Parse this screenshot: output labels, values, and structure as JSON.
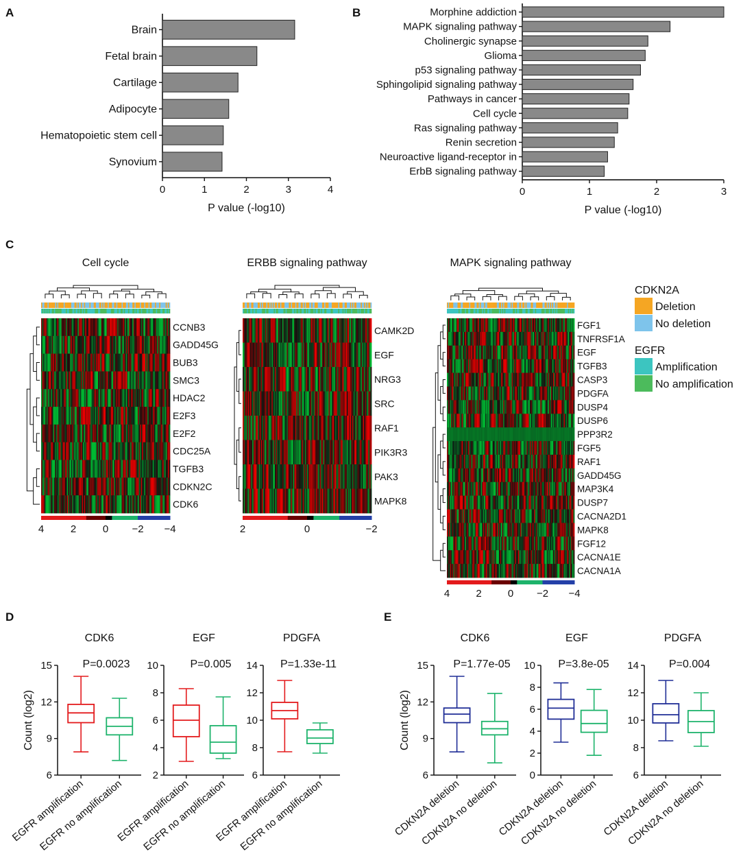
{
  "panel_letters": {
    "a": "A",
    "b": "B",
    "c": "C",
    "d": "D",
    "e": "E"
  },
  "colors": {
    "bar": "#898989",
    "red": "#e31a1c",
    "green": "#1db36b",
    "blue": "#1f2d96",
    "deletion": "#f5a623",
    "no_deletion": "#7ec4eb",
    "amplification": "#3cc5c0",
    "no_amplification": "#4cbb5c"
  },
  "chart_data": [
    {
      "id": "A",
      "type": "bar",
      "orientation": "horizontal",
      "categories": [
        "Brain",
        "Fetal brain",
        "Cartilage",
        "Adipocyte",
        "Hematopoietic stem cell",
        "Synovium"
      ],
      "values": [
        3.15,
        2.25,
        1.8,
        1.58,
        1.45,
        1.42
      ],
      "xlabel": "P value (-log10)",
      "xlim": [
        0,
        4
      ],
      "xticks": [
        "0",
        "1",
        "2",
        "3",
        "4"
      ]
    },
    {
      "id": "B",
      "type": "bar",
      "orientation": "horizontal",
      "categories": [
        "Morphine addiction",
        "MAPK signaling pathway",
        "Cholinergic synapse",
        "Glioma",
        "p53 signaling pathway",
        "Sphingolipid signaling pathway",
        "Pathways in cancer",
        "Cell cycle",
        "Ras signaling pathway",
        "Renin secretion",
        "Neuroactive ligand-receptor in",
        "ErbB signaling pathway"
      ],
      "values": [
        3.0,
        2.2,
        1.87,
        1.83,
        1.76,
        1.65,
        1.59,
        1.57,
        1.42,
        1.37,
        1.27,
        1.22
      ],
      "xlabel": "P value (-log10)",
      "xlim": [
        0,
        3
      ],
      "xticks": [
        "0",
        "1",
        "2",
        "3"
      ]
    },
    {
      "id": "C1",
      "type": "heatmap",
      "title": "Cell cycle",
      "rows": [
        "CCNB3",
        "GADD45G",
        "BUB3",
        "SMC3",
        "HDAC2",
        "E2F3",
        "E2F2",
        "CDC25A",
        "TGFB3",
        "CDKN2C",
        "CDK6"
      ],
      "scale_labels": [
        "4",
        "2",
        "0",
        "−2",
        "−4"
      ]
    },
    {
      "id": "C2",
      "type": "heatmap",
      "title": "ERBB signaling pathway",
      "rows": [
        "CAMK2D",
        "EGF",
        "NRG3",
        "SRC",
        "RAF1",
        "PIK3R3",
        "PAK3",
        "MAPK8"
      ],
      "scale_labels": [
        "2",
        "0",
        "−2"
      ]
    },
    {
      "id": "C3",
      "type": "heatmap",
      "title": "MAPK signaling pathway",
      "rows": [
        "FGF1",
        "TNFRSF1A",
        "EGF",
        "TGFB3",
        "CASP3",
        "PDGFA",
        "DUSP4",
        "DUSP6",
        "PPP3R2",
        "FGF5",
        "RAF1",
        "GADD45G",
        "MAP3K4",
        "DUSP7",
        "CACNA2D1",
        "MAPK8",
        "FGF12",
        "CACNA1E",
        "CACNA1A"
      ],
      "scale_labels": [
        "4",
        "2",
        "0",
        "−2",
        "−4"
      ]
    }
  ],
  "legend": {
    "cdkn2a_title": "CDKN2A",
    "deletion": "Deletion",
    "no_deletion": "No deletion",
    "egfr_title": "EGFR",
    "amplification": "Amplification",
    "no_amplification": "No amplification"
  },
  "box_panels": [
    {
      "id": "D1",
      "title": "CDK6",
      "pvalue": "P=0.0023",
      "ylabel": "Count (log2)",
      "ylim": [
        6,
        15
      ],
      "yticks": [
        6,
        9,
        12,
        15
      ],
      "ytick_labels": [
        "6",
        "9",
        "12",
        "15"
      ],
      "groups": [
        {
          "name": "EGFR amplification",
          "color": "red",
          "min": 7.9,
          "q1": 10.3,
          "median": 11.1,
          "q3": 11.8,
          "max": 14.1
        },
        {
          "name": "EGFR no amplification",
          "color": "green",
          "min": 7.2,
          "q1": 9.3,
          "median": 10.0,
          "q3": 10.7,
          "max": 12.3
        }
      ]
    },
    {
      "id": "D2",
      "title": "EGF",
      "pvalue": "P=0.005",
      "ylim": [
        2,
        10
      ],
      "yticks": [
        2,
        4,
        6,
        8,
        10
      ],
      "ytick_labels": [
        "2",
        "4",
        "6",
        "8",
        "10"
      ],
      "groups": [
        {
          "name": "EGFR amplification",
          "color": "red",
          "min": 3.0,
          "q1": 4.8,
          "median": 6.0,
          "q3": 7.1,
          "max": 8.3
        },
        {
          "name": "EGFR no amplification",
          "color": "green",
          "min": 3.2,
          "q1": 3.6,
          "median": 4.4,
          "q3": 5.6,
          "max": 7.7
        }
      ]
    },
    {
      "id": "D3",
      "title": "PDGFA",
      "pvalue": "P=1.33e-11",
      "ylim": [
        6,
        14
      ],
      "yticks": [
        6,
        8,
        10,
        12,
        14
      ],
      "ytick_labels": [
        "6",
        "8",
        "10",
        "12",
        "14"
      ],
      "groups": [
        {
          "name": "EGFR amplification",
          "color": "red",
          "min": 7.7,
          "q1": 10.1,
          "median": 10.7,
          "q3": 11.3,
          "max": 12.9
        },
        {
          "name": "EGFR no amplification",
          "color": "green",
          "min": 7.6,
          "q1": 8.3,
          "median": 8.7,
          "q3": 9.3,
          "max": 9.8
        }
      ]
    },
    {
      "id": "E1",
      "title": "CDK6",
      "pvalue": "P=1.77e-05",
      "ylabel": "Count (log2)",
      "ylim": [
        6,
        15
      ],
      "yticks": [
        6,
        9,
        12,
        15
      ],
      "ytick_labels": [
        "6",
        "9",
        "12",
        "15"
      ],
      "groups": [
        {
          "name": "CDKN2A deletion",
          "color": "blue",
          "min": 7.9,
          "q1": 10.3,
          "median": 11.0,
          "q3": 11.5,
          "max": 14.1
        },
        {
          "name": "CDKN2A no deletion",
          "color": "green",
          "min": 7.0,
          "q1": 9.3,
          "median": 9.8,
          "q3": 10.4,
          "max": 12.7
        }
      ]
    },
    {
      "id": "E2",
      "title": "EGF",
      "pvalue": "P=3.8e-05",
      "ylim": [
        0,
        10
      ],
      "yticks": [
        0,
        2,
        4,
        6,
        8,
        10
      ],
      "ytick_labels": [
        "0",
        "2",
        "4",
        "6",
        "8",
        "10"
      ],
      "groups": [
        {
          "name": "CDKN2A deletion",
          "color": "blue",
          "min": 3.0,
          "q1": 5.1,
          "median": 6.1,
          "q3": 6.9,
          "max": 8.4
        },
        {
          "name": "CDKN2A no deletion",
          "color": "green",
          "min": 1.8,
          "q1": 3.9,
          "median": 4.7,
          "q3": 5.9,
          "max": 7.8
        }
      ]
    },
    {
      "id": "E3",
      "title": "PDGFA",
      "pvalue": "P=0.004",
      "ylim": [
        6,
        14
      ],
      "yticks": [
        6,
        8,
        10,
        12,
        14
      ],
      "ytick_labels": [
        "6",
        "8",
        "10",
        "12",
        "14"
      ],
      "groups": [
        {
          "name": "CDKN2A deletion",
          "color": "blue",
          "min": 8.5,
          "q1": 9.8,
          "median": 10.4,
          "q3": 11.2,
          "max": 12.9
        },
        {
          "name": "CDKN2A no deletion",
          "color": "green",
          "min": 8.1,
          "q1": 9.1,
          "median": 9.9,
          "q3": 10.7,
          "max": 12.0
        }
      ]
    }
  ]
}
